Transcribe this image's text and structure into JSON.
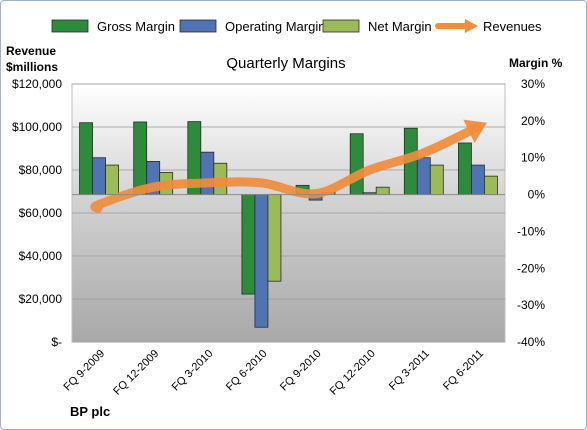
{
  "chart_data": {
    "type": "bar",
    "title": "Quarterly Margins",
    "company": "BP plc",
    "categories": [
      "FQ 9-2009",
      "FQ 12-2009",
      "FQ 3-2010",
      "FQ 6-2010",
      "FQ 9-2010",
      "FQ 12-2010",
      "FQ 3-2011",
      "FQ 6-2011"
    ],
    "y_left": {
      "label_line1": "Revenue",
      "label_line2": "$millions",
      "range": [
        0,
        120000
      ],
      "ticks": [
        "$-",
        "$20,000",
        "$40,000",
        "$60,000",
        "$80,000",
        "$100,000",
        "$120,000"
      ]
    },
    "y_right": {
      "label": "Margin %",
      "range": [
        -40,
        30
      ],
      "ticks": [
        "-40%",
        "-30%",
        "-20%",
        "-10%",
        "0%",
        "10%",
        "20%",
        "30%"
      ]
    },
    "series": [
      {
        "name": "Gross Margin",
        "kind": "bar",
        "axis": "right",
        "color": "#2e8b3c",
        "values": [
          19.5,
          19.7,
          19.8,
          -27,
          2.5,
          16.5,
          18,
          14
        ]
      },
      {
        "name": "Operating Margin",
        "kind": "bar",
        "axis": "right",
        "color": "#4f73b3",
        "values": [
          10,
          9,
          11.5,
          -36,
          -1.5,
          0.5,
          10,
          8
        ]
      },
      {
        "name": "Net Margin",
        "kind": "bar",
        "axis": "right",
        "color": "#9bbb59",
        "values": [
          8,
          6,
          8.5,
          -23.5,
          0.5,
          2,
          8,
          5
        ]
      },
      {
        "name": "Revenues",
        "kind": "line-arrow",
        "axis": "left",
        "color": "#f08c3c",
        "values": [
          64000,
          72000,
          74000,
          74000,
          69000,
          80000,
          88000,
          100000
        ]
      }
    ],
    "legend": {
      "position": "top"
    },
    "grid": true
  }
}
